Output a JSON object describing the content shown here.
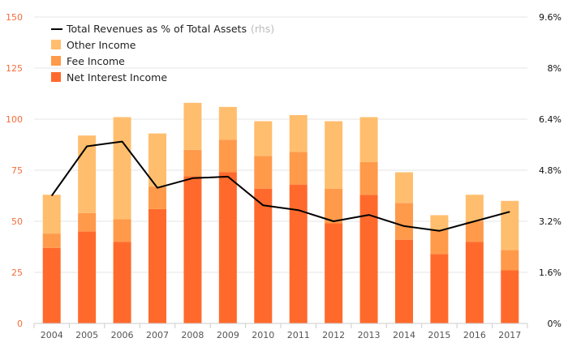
{
  "chart_data": {
    "type": "bar",
    "stacked": true,
    "categories": [
      "2004",
      "2005",
      "2006",
      "2007",
      "2008",
      "2009",
      "2010",
      "2011",
      "2012",
      "2013",
      "2014",
      "2015",
      "2016",
      "2017"
    ],
    "series": [
      {
        "name": "Net Interest Income",
        "color": "#ff6a2c",
        "values": [
          37,
          45,
          40,
          56,
          72,
          74,
          66,
          68,
          49,
          63,
          41,
          34,
          40,
          26
        ]
      },
      {
        "name": "Fee Income",
        "color": "#ff9a4a",
        "values": [
          7,
          9,
          11,
          11,
          13,
          16,
          16,
          16,
          17,
          16,
          18,
          12,
          10,
          10
        ]
      },
      {
        "name": "Other Income",
        "color": "#ffbe6e",
        "values": [
          19,
          38,
          50,
          26,
          23,
          16,
          17,
          18,
          33,
          22,
          15,
          7,
          13,
          24
        ]
      }
    ],
    "line_series": {
      "name": "Total Revenues as % of Total Assets",
      "name_suffix": "(rhs)",
      "color": "#000000",
      "values": [
        4.0,
        5.55,
        5.7,
        4.25,
        4.55,
        4.6,
        3.7,
        3.55,
        3.2,
        3.4,
        3.05,
        2.9,
        3.2,
        3.5
      ]
    },
    "ylim": [
      0,
      150
    ],
    "y_ticks": [
      "0",
      "25",
      "50",
      "75",
      "100",
      "125",
      "150"
    ],
    "y2lim": [
      0,
      9.6
    ],
    "y2_ticks": [
      "0%",
      "1.6%",
      "3.2%",
      "4.8%",
      "6.4%",
      "8%",
      "9.6%"
    ],
    "grid": true,
    "legend_position": "top-left",
    "legend": [
      "Total Revenues as % of Total Assets",
      "Other Income",
      "Fee Income",
      "Net Interest Income"
    ]
  }
}
